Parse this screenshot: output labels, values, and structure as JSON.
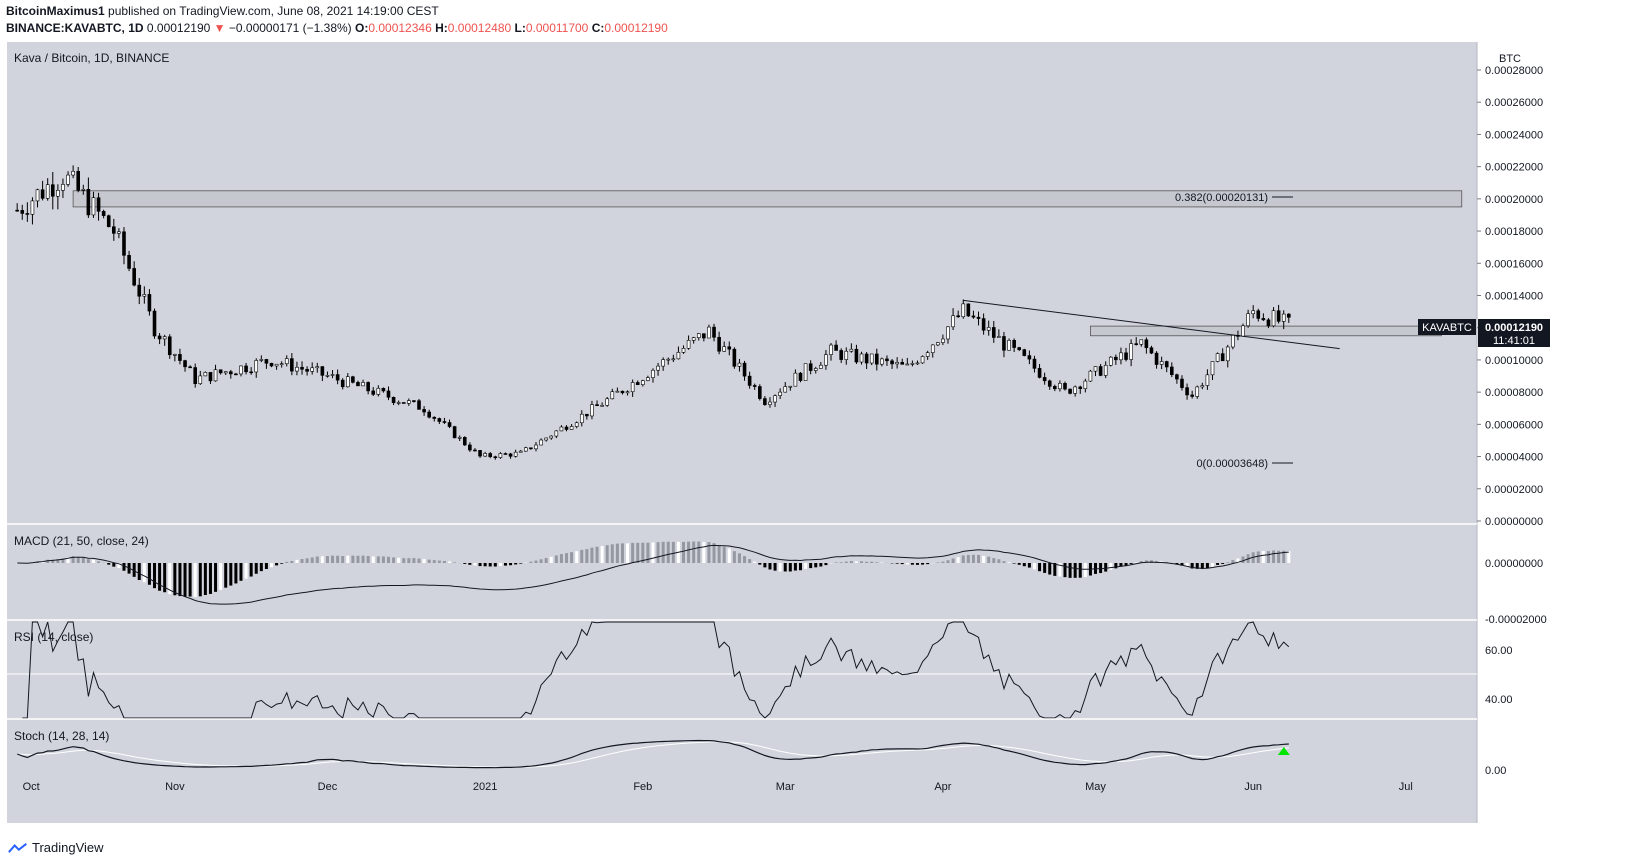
{
  "header": {
    "author": "BitcoinMaximus1",
    "published": "published on TradingView.com, June 08, 2021 14:19:00 CEST",
    "symbol": "BINANCE:KAVABTC, 1D",
    "last": "0.00012190",
    "change": "−0.00000171 (−1.38%)",
    "o_label": "O:",
    "o": "0.00012346",
    "h_label": "H:",
    "h": "0.00012480",
    "l_label": "L:",
    "l": "0.00011700",
    "c_label": "C:",
    "c": "0.00012190",
    "down_arrow": "▼"
  },
  "colors": {
    "panel_bg": "#d1d4dc",
    "candle": "#000000",
    "accent_red": "#ef5350",
    "green": "#00e600"
  },
  "main_pane": {
    "title": "Kava / Bitcoin, 1D, BINANCE",
    "currency": "BTC",
    "yticks": [
      "0.00028000",
      "0.00026000",
      "0.00024000",
      "0.00022000",
      "0.00020000",
      "0.00018000",
      "0.00016000",
      "0.00014000",
      "0.00012000",
      "0.00010000",
      "0.00008000",
      "0.00006000",
      "0.00004000",
      "0.00002000",
      "0.00000000"
    ],
    "symbol_tag": "KAVABTC",
    "price_tag": "0.00012190",
    "countdown": "11:41:01",
    "fib_high_label": "0.382(0.00020131)",
    "fib_low_label": "0(0.00003648)"
  },
  "macd_pane": {
    "title": "MACD (21, 50, close, 24)",
    "yticks": [
      "0.00000000",
      "-0.00002000"
    ]
  },
  "rsi_pane": {
    "title": "RSI (14, close)",
    "yticks": [
      "60.00",
      "40.00"
    ]
  },
  "stoch_pane": {
    "title": "Stoch (14, 28, 14)",
    "yticks": [
      "0.00"
    ]
  },
  "x_axis": {
    "labels": [
      "Oct",
      "Nov",
      "Dec",
      "2021",
      "Feb",
      "Mar",
      "Apr",
      "May",
      "Jun",
      "Jul"
    ]
  },
  "footer": {
    "brand": "TradingView"
  },
  "chart_data": {
    "type": "candlestick",
    "title": "Kava / Bitcoin, 1D, BINANCE",
    "x_range": [
      "2020-09-29",
      "2021-07-15"
    ],
    "y_range": [
      0,
      0.00028
    ],
    "key_points": [
      {
        "date": "2020-10-01",
        "close": 0.000193
      },
      {
        "date": "2020-10-10",
        "close": 0.000215
      },
      {
        "date": "2020-10-20",
        "close": 0.00018
      },
      {
        "date": "2020-10-28",
        "close": 0.00012
      },
      {
        "date": "2020-11-05",
        "close": 8.8e-05
      },
      {
        "date": "2020-11-20",
        "close": 0.0001
      },
      {
        "date": "2020-12-01",
        "close": 9e-05
      },
      {
        "date": "2020-12-20",
        "close": 7e-05
      },
      {
        "date": "2020-12-31",
        "close": 4e-05
      },
      {
        "date": "2021-01-08",
        "close": 4.2e-05
      },
      {
        "date": "2021-01-25",
        "close": 7.5e-05
      },
      {
        "date": "2021-02-14",
        "close": 0.000118
      },
      {
        "date": "2021-02-25",
        "close": 7.5e-05
      },
      {
        "date": "2021-03-10",
        "close": 0.000105
      },
      {
        "date": "2021-03-25",
        "close": 9.5e-05
      },
      {
        "date": "2021-04-05",
        "close": 0.00013
      },
      {
        "date": "2021-04-25",
        "close": 8e-05
      },
      {
        "date": "2021-05-10",
        "close": 0.00011
      },
      {
        "date": "2021-05-20",
        "close": 7.8e-05
      },
      {
        "date": "2021-06-01",
        "close": 0.00013
      },
      {
        "date": "2021-06-08",
        "close": 0.0001219
      }
    ],
    "fib_levels": [
      {
        "label": "0.382",
        "value": 0.00020131
      },
      {
        "label": "0",
        "value": 3.648e-05
      }
    ],
    "resistance_zone": [
      0.000195,
      0.000205
    ],
    "support_zone": [
      0.000115,
      0.000121
    ],
    "trendline": [
      {
        "date": "2021-04-05",
        "value": 0.000137
      },
      {
        "date": "2021-06-18",
        "value": 0.000107
      }
    ]
  }
}
